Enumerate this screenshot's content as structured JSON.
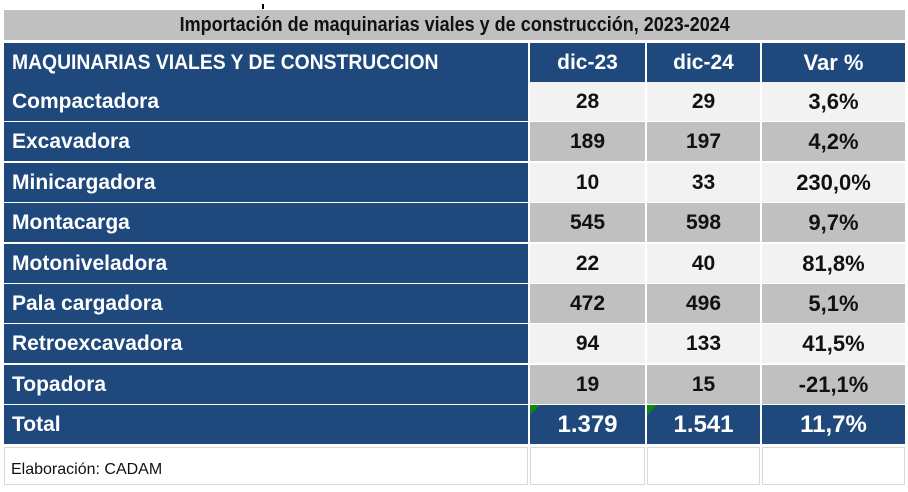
{
  "title": "Importación de maquinarias viales y de construcción, 2023-2024",
  "header": {
    "label": "MAQUINARIAS VIALES Y DE CONSTRUCCION",
    "col1": "dic-23",
    "col2": "dic-24",
    "col3": "Var %"
  },
  "rows": [
    {
      "label": "Compactadora",
      "dic23": "28",
      "dic24": "29",
      "var": "3,6%"
    },
    {
      "label": "Excavadora",
      "dic23": "189",
      "dic24": "197",
      "var": "4,2%"
    },
    {
      "label": "Minicargadora",
      "dic23": "10",
      "dic24": "33",
      "var": "230,0%"
    },
    {
      "label": "Montacarga",
      "dic23": "545",
      "dic24": "598",
      "var": "9,7%"
    },
    {
      "label": "Motoniveladora",
      "dic23": "22",
      "dic24": "40",
      "var": "81,8%"
    },
    {
      "label": "Pala cargadora",
      "dic23": "472",
      "dic24": "496",
      "var": "5,1%"
    },
    {
      "label": "Retroexcavadora",
      "dic23": "94",
      "dic24": "133",
      "var": "41,5%"
    },
    {
      "label": "Topadora",
      "dic23": "19",
      "dic24": "15",
      "var": "-21,1%"
    }
  ],
  "total": {
    "label": "Total",
    "dic23": "1.379",
    "dic24": "1.541",
    "var": "11,7%"
  },
  "footer": "Elaboración: CADAM",
  "colors": {
    "navy": "#1f497d",
    "gray": "#c0c0c0",
    "light": "#f2f2f2"
  }
}
